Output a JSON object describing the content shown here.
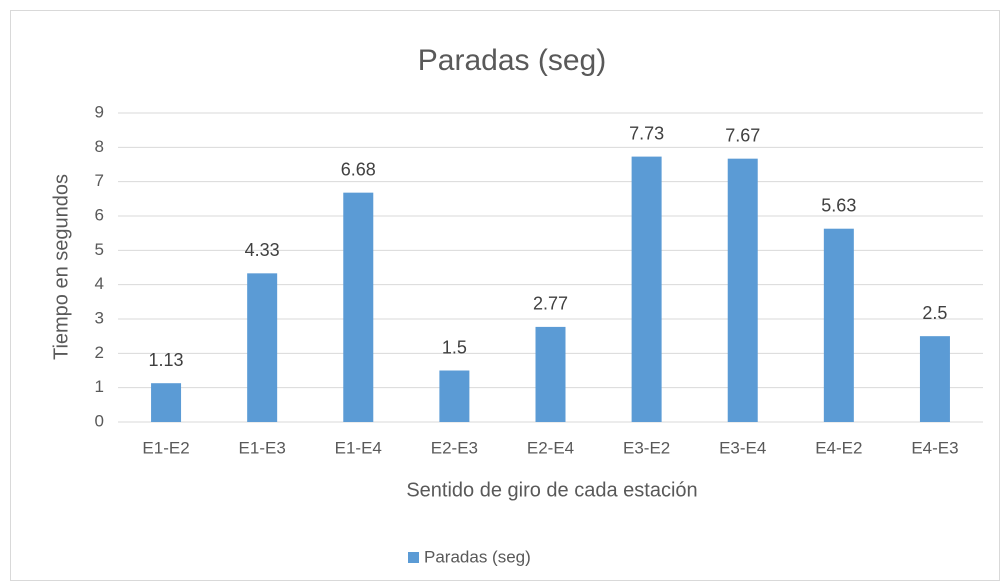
{
  "chart_data": {
    "type": "bar",
    "title": "Paradas (seg)",
    "x_label": "Sentido de giro de cada estación",
    "y_label": "Tiempo en segundos",
    "categories": [
      "E1-E2",
      "E1-E3",
      "E1-E4",
      "E2-E3",
      "E2-E4",
      "E3-E2",
      "E3-E4",
      "E4-E2",
      "E4-E3"
    ],
    "series": [
      {
        "name": "Paradas (seg)",
        "color": "#5b9bd5",
        "values": [
          1.13,
          4.33,
          6.68,
          1.5,
          2.77,
          7.73,
          7.67,
          5.63,
          2.5
        ]
      }
    ],
    "ylim": [
      0,
      9
    ],
    "yticks": [
      0,
      1,
      2,
      3,
      4,
      5,
      6,
      7,
      8,
      9
    ],
    "grid": true,
    "legend": "bottom"
  }
}
